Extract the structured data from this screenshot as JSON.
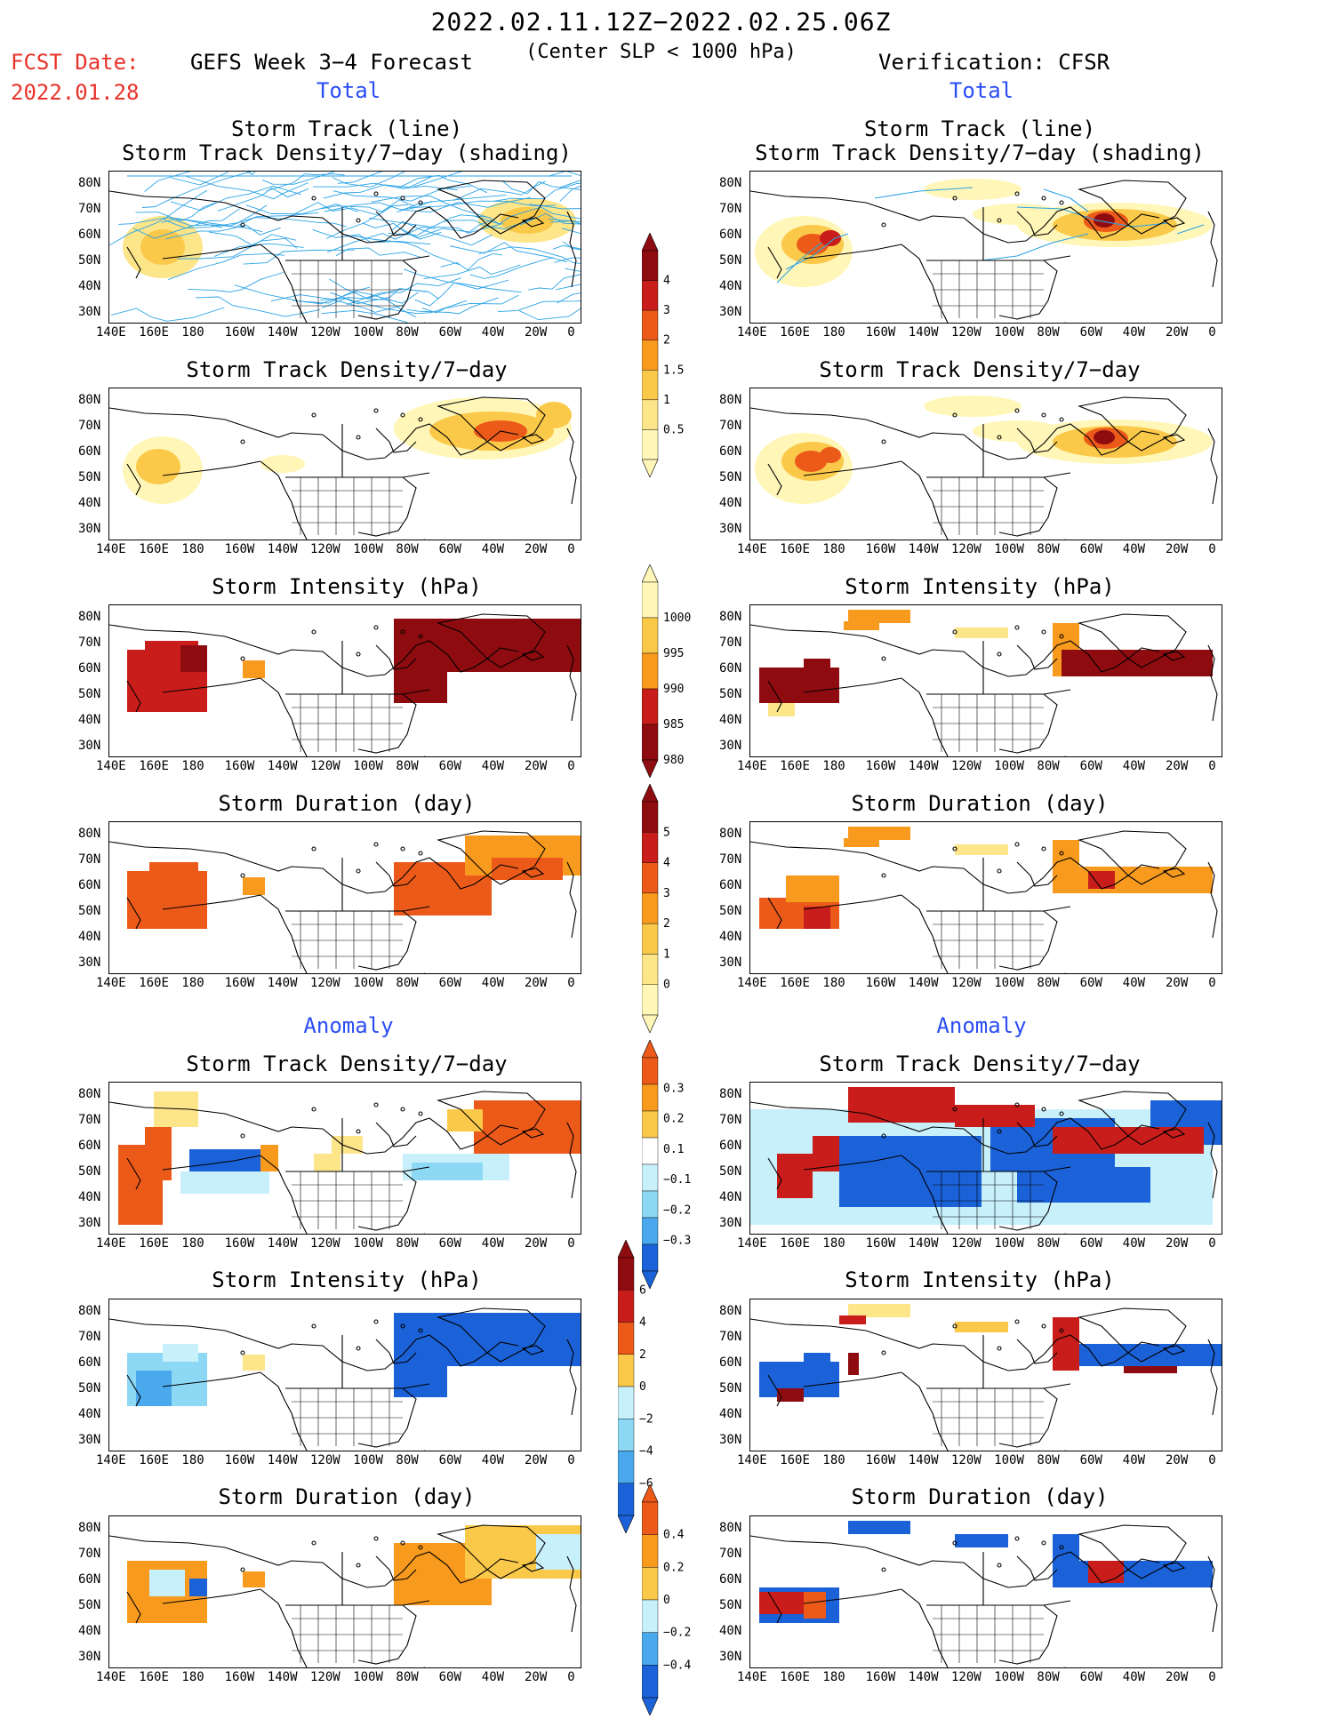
{
  "header": {
    "date_range": "2022.02.11.12Z−2022.02.25.06Z",
    "criterion": "(Center SLP < 1000 hPa)",
    "fcst_label": "FCST Date:",
    "fcst_date": "2022.01.28",
    "left_title": "GEFS Week 3−4 Forecast",
    "right_title": "Verification: CFSR"
  },
  "sections": {
    "total": "Total",
    "anomaly": "Anomaly"
  },
  "panel_titles": {
    "track": [
      "Storm Track (line)",
      "Storm Track Density/7−day (shading)"
    ],
    "density": "Storm Track Density/7−day",
    "intensity": "Storm Intensity (hPa)",
    "duration": "Storm Duration (day)"
  },
  "axes": {
    "lat_labels": [
      "80N",
      "70N",
      "60N",
      "50N",
      "40N",
      "30N"
    ],
    "lon_labels": [
      "140E",
      "160E",
      "180",
      "160W",
      "140W",
      "120W",
      "100W",
      "80W",
      "60W",
      "40W",
      "20W",
      "0"
    ]
  },
  "colorbars": {
    "density_total": [
      "4",
      "3",
      "2",
      "1.5",
      "1",
      "0.5"
    ],
    "intensity_total": [
      "1000",
      "995",
      "990",
      "985",
      "980"
    ],
    "duration_total": [
      "5",
      "4",
      "3",
      "2",
      "1",
      "0"
    ],
    "density_anom": [
      "0.3",
      "0.2",
      "0.1",
      "−0.1",
      "−0.2",
      "−0.3"
    ],
    "intensity_anom": [
      "6",
      "4",
      "2",
      "0",
      "−2",
      "−4",
      "−6"
    ],
    "duration_anom": [
      "0.4",
      "0.2",
      "0",
      "−0.2",
      "−0.4"
    ]
  },
  "colors": {
    "heat": [
      "#fff6b8",
      "#fde58a",
      "#fbc94a",
      "#f89a1e",
      "#ec5a1a",
      "#c81d1a",
      "#8e0c10"
    ],
    "cool": [
      "#c8f0fb",
      "#8cd8f5",
      "#4aa8ec",
      "#1b62d8"
    ],
    "section_blue": "#2a4df5",
    "fcst_red": "#e8332a",
    "track_line": "#2ba3e6"
  }
}
